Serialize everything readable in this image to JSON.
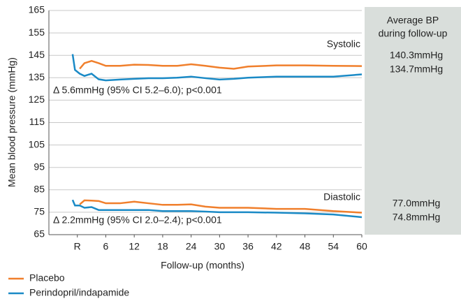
{
  "chart_data": {
    "type": "line",
    "y_label": "Mean blood pressure (mmHg)",
    "x_label": "Follow-up (months)",
    "panel_title": [
      "Average BP",
      "during follow-up"
    ],
    "systolic_label": "Systolic",
    "diastolic_label": "Diastolic",
    "systolic_note": "Δ 5.6mmHg (95% CI 5.2–6.0); p<0.001",
    "diastolic_note": "Δ 2.2mmHg (95% CI 2.0–2.4); p<0.001",
    "averages": [
      "140.3mmHg",
      "134.7mmHg",
      "77.0mmHg",
      "74.8mmHg"
    ],
    "x": [
      -1,
      -0.5,
      0.5,
      1.5,
      3,
      4.5,
      6,
      9,
      12,
      15,
      18,
      21,
      24,
      27,
      30,
      33,
      36,
      42,
      48,
      54,
      60
    ],
    "series": [
      {
        "name": "Placebo",
        "color": "#f07f2c",
        "systolic": [
          null,
          null,
          139,
          141.5,
          142.5,
          141.5,
          140.3,
          140.3,
          140.8,
          140.7,
          140.3,
          140.3,
          141,
          140.3,
          139.5,
          139,
          140,
          140.5,
          140.5,
          140.3,
          140.2
        ],
        "diastolic": [
          null,
          null,
          78.5,
          80.3,
          80.2,
          80,
          79,
          79,
          79.7,
          79,
          78.3,
          78.3,
          78.5,
          77.5,
          77,
          77,
          77,
          76.5,
          76.5,
          75.5,
          74.8
        ]
      },
      {
        "name": "Perindopril/indapamide",
        "color": "#1a8ac6",
        "systolic": [
          145.5,
          138.5,
          136.8,
          135.8,
          136.8,
          134.3,
          133.8,
          134.2,
          134.5,
          134.8,
          134.8,
          135,
          135.5,
          134.8,
          134.2,
          134.5,
          135,
          135.5,
          135.5,
          135.5,
          136.5
        ],
        "diastolic": [
          80.5,
          78,
          78,
          77,
          77.3,
          76,
          76,
          76,
          76,
          76,
          75.5,
          75.5,
          75.5,
          75.3,
          75,
          75,
          75,
          74.8,
          74.5,
          74,
          72.8
        ]
      }
    ],
    "xlim": [
      -6,
      60
    ],
    "ylim": [
      65,
      165
    ],
    "xticks": [
      {
        "value": 0,
        "label": "R"
      },
      6,
      12,
      18,
      24,
      30,
      36,
      42,
      48,
      54,
      60
    ],
    "yticks": [
      65,
      75,
      85,
      95,
      105,
      115,
      125,
      135,
      145,
      155,
      165
    ],
    "grid": true
  }
}
